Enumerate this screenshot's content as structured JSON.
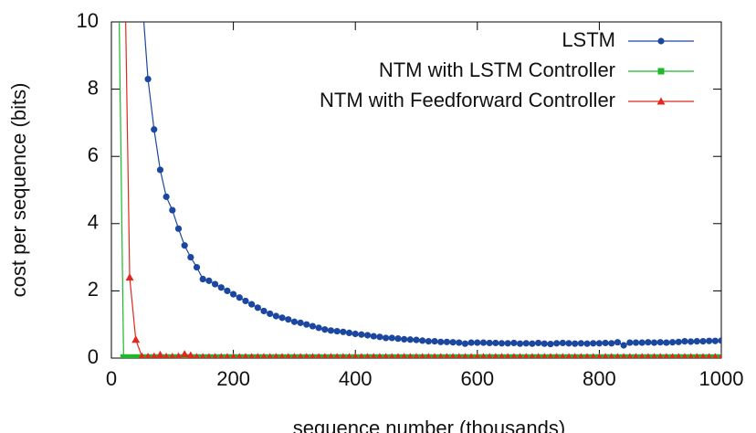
{
  "chart_data": {
    "type": "line",
    "x_label": "sequence number (thousands)",
    "y_label": "cost per sequence (bits)",
    "x": [
      10,
      20,
      30,
      40,
      50,
      60,
      70,
      80,
      90,
      100,
      110,
      120,
      130,
      140,
      150,
      160,
      170,
      180,
      190,
      200,
      210,
      220,
      230,
      240,
      250,
      260,
      270,
      280,
      290,
      300,
      310,
      320,
      330,
      340,
      350,
      360,
      370,
      380,
      390,
      400,
      410,
      420,
      430,
      440,
      450,
      460,
      470,
      480,
      490,
      500,
      510,
      520,
      530,
      540,
      550,
      560,
      570,
      580,
      590,
      600,
      610,
      620,
      630,
      640,
      650,
      660,
      670,
      680,
      690,
      700,
      710,
      720,
      730,
      740,
      750,
      760,
      770,
      780,
      790,
      800,
      810,
      820,
      830,
      840,
      850,
      860,
      870,
      880,
      890,
      900,
      910,
      920,
      930,
      940,
      950,
      960,
      970,
      980,
      990,
      1000
    ],
    "series": [
      {
        "name": "LSTM",
        "color": "#1c47a0",
        "marker": "circle",
        "values": [
          null,
          null,
          null,
          null,
          10.8,
          8.3,
          6.8,
          5.6,
          4.8,
          4.4,
          3.85,
          3.35,
          3.0,
          2.7,
          2.35,
          2.3,
          2.2,
          2.1,
          2.0,
          1.9,
          1.8,
          1.7,
          1.6,
          1.5,
          1.4,
          1.32,
          1.25,
          1.2,
          1.15,
          1.08,
          1.05,
          1.0,
          0.95,
          0.9,
          0.85,
          0.82,
          0.8,
          0.78,
          0.75,
          0.72,
          0.7,
          0.68,
          0.65,
          0.63,
          0.6,
          0.6,
          0.58,
          0.56,
          0.55,
          0.54,
          0.52,
          0.5,
          0.5,
          0.48,
          0.48,
          0.47,
          0.46,
          0.43,
          0.46,
          0.46,
          0.46,
          0.45,
          0.45,
          0.44,
          0.44,
          0.45,
          0.43,
          0.44,
          0.43,
          0.45,
          0.43,
          0.42,
          0.44,
          0.45,
          0.44,
          0.43,
          0.44,
          0.43,
          0.44,
          0.44,
          0.45,
          0.44,
          0.47,
          0.38,
          0.46,
          0.46,
          0.46,
          0.47,
          0.46,
          0.47,
          0.46,
          0.47,
          0.48,
          0.5,
          0.49,
          0.5,
          0.5,
          0.51,
          0.51,
          0.52
        ]
      },
      {
        "name": "NTM with LSTM Controller",
        "color": "#1fb82b",
        "marker": "square",
        "values": [
          14,
          0.02,
          0.02,
          0.02,
          0.02,
          0.02,
          0.02,
          0.02,
          0.02,
          0.02,
          0.02,
          0.02,
          0.02,
          0.02,
          0.02,
          0.02,
          0.02,
          0.02,
          0.02,
          0.02,
          0.02,
          0.02,
          0.02,
          0.02,
          0.02,
          0.02,
          0.02,
          0.02,
          0.02,
          0.02,
          0.02,
          0.02,
          0.02,
          0.02,
          0.02,
          0.02,
          0.02,
          0.02,
          0.02,
          0.02,
          0.02,
          0.02,
          0.02,
          0.02,
          0.02,
          0.02,
          0.02,
          0.02,
          0.02,
          0.02,
          0.02,
          0.02,
          0.02,
          0.02,
          0.02,
          0.02,
          0.02,
          0.02,
          0.02,
          0.02,
          0.02,
          0.02,
          0.02,
          0.02,
          0.02,
          0.02,
          0.02,
          0.02,
          0.02,
          0.02,
          0.02,
          0.02,
          0.02,
          0.02,
          0.02,
          0.02,
          0.02,
          0.02,
          0.02,
          0.02,
          0.02,
          0.02,
          0.02,
          0.02,
          0.02,
          0.02,
          0.02,
          0.02,
          0.02,
          0.02,
          0.02,
          0.02,
          0.02,
          0.02,
          0.02,
          0.02,
          0.02,
          0.02,
          0.02,
          0.02
        ]
      },
      {
        "name": "NTM with Feedforward Controller",
        "color": "#e0281f",
        "marker": "triangle",
        "values": [
          null,
          14,
          2.4,
          0.55,
          0.05,
          0.04,
          0.05,
          0.1,
          0.04,
          0.04,
          0.05,
          0.12,
          0.08,
          0.03,
          0.03,
          0.03,
          0.03,
          0.03,
          0.03,
          0.03,
          0.03,
          0.03,
          0.03,
          0.03,
          0.03,
          0.03,
          0.03,
          0.03,
          0.03,
          0.03,
          0.03,
          0.03,
          0.03,
          0.03,
          0.03,
          0.03,
          0.03,
          0.03,
          0.03,
          0.03,
          0.03,
          0.03,
          0.03,
          0.03,
          0.03,
          0.03,
          0.03,
          0.03,
          0.03,
          0.03,
          0.03,
          0.03,
          0.03,
          0.03,
          0.03,
          0.03,
          0.03,
          0.03,
          0.03,
          0.03,
          0.03,
          0.03,
          0.03,
          0.03,
          0.03,
          0.03,
          0.03,
          0.03,
          0.03,
          0.03,
          0.03,
          0.03,
          0.03,
          0.03,
          0.03,
          0.03,
          0.03,
          0.03,
          0.03,
          0.03,
          0.03,
          0.03,
          0.03,
          0.03,
          0.03,
          0.03,
          0.03,
          0.03,
          0.03,
          0.03,
          0.03,
          0.03,
          0.03,
          0.03,
          0.03,
          0.03,
          0.03,
          0.03,
          0.03,
          0.03
        ]
      }
    ],
    "xlim": [
      0,
      1000
    ],
    "ylim": [
      0,
      10
    ],
    "xticks": [
      0,
      200,
      400,
      600,
      800,
      1000
    ],
    "yticks": [
      0,
      2,
      4,
      6,
      8,
      10
    ],
    "legend": "upper right"
  }
}
